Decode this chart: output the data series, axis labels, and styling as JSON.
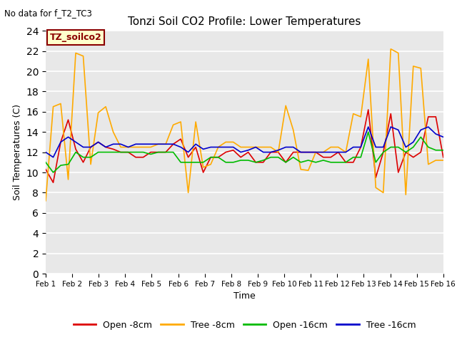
{
  "title": "Tonzi Soil CO2 Profile: Lower Temperatures",
  "subtitle": "No data for f_T2_TC3",
  "xlabel": "Time",
  "ylabel": "Soil Temperatures (C)",
  "ylim": [
    0,
    24
  ],
  "yticks": [
    0,
    2,
    4,
    6,
    8,
    10,
    12,
    14,
    16,
    18,
    20,
    22,
    24
  ],
  "x_labels": [
    "Feb 1",
    "Feb 2",
    "Feb 3",
    "Feb 4",
    "Feb 5",
    "Feb 6",
    "Feb 7",
    "Feb 8",
    "Feb 9",
    "Feb 10",
    "Feb 11",
    "Feb 12",
    "Feb 13",
    "Feb 14",
    "Feb 15",
    "Feb 16"
  ],
  "annotation_text": "TZ_soilco2",
  "legend": [
    "Open -8cm",
    "Tree -8cm",
    "Open -16cm",
    "Tree -16cm"
  ],
  "colors": {
    "open_8cm": "#dd0000",
    "tree_8cm": "#ffaa00",
    "open_16cm": "#00bb00",
    "tree_16cm": "#0000cc"
  },
  "bg_color": "#e8e8e8",
  "open_8cm": [
    10.3,
    9.0,
    13.0,
    15.2,
    12.3,
    11.0,
    12.5,
    13.0,
    12.5,
    12.3,
    12.0,
    12.0,
    11.5,
    11.5,
    12.0,
    12.0,
    12.0,
    12.8,
    13.3,
    11.5,
    12.5,
    10.0,
    11.5,
    11.5,
    12.0,
    12.2,
    11.5,
    12.0,
    11.0,
    11.0,
    12.0,
    12.0,
    11.0,
    12.0,
    12.0,
    12.0,
    12.0,
    11.5,
    11.5,
    12.0,
    11.0,
    11.0,
    12.5,
    16.2,
    9.5,
    12.0,
    15.8,
    10.0,
    12.0,
    11.5,
    12.0,
    15.5,
    15.5,
    11.5
  ],
  "tree_8cm": [
    7.2,
    16.5,
    16.8,
    9.3,
    21.8,
    21.5,
    10.8,
    15.9,
    16.5,
    14.0,
    12.5,
    12.5,
    12.5,
    12.5,
    12.5,
    12.8,
    12.8,
    14.7,
    15.0,
    8.0,
    15.0,
    10.5,
    10.8,
    12.5,
    13.0,
    13.0,
    12.5,
    12.5,
    12.5,
    12.5,
    12.5,
    12.0,
    16.6,
    14.2,
    10.3,
    10.2,
    12.0,
    12.0,
    12.5,
    12.5,
    12.0,
    15.8,
    15.5,
    21.2,
    8.5,
    8.0,
    22.2,
    21.8,
    7.8,
    20.5,
    20.3,
    10.8,
    11.2,
    11.2
  ],
  "open_16cm": [
    11.0,
    10.0,
    10.7,
    10.8,
    12.0,
    11.5,
    11.5,
    12.0,
    12.0,
    12.0,
    12.0,
    12.0,
    12.0,
    12.0,
    11.8,
    12.0,
    12.0,
    12.0,
    11.0,
    11.0,
    11.0,
    11.0,
    11.5,
    11.5,
    11.0,
    11.0,
    11.2,
    11.2,
    11.0,
    11.2,
    11.5,
    11.5,
    11.0,
    11.5,
    11.0,
    11.2,
    11.0,
    11.2,
    11.0,
    11.0,
    11.0,
    11.5,
    11.5,
    14.0,
    11.0,
    12.0,
    12.5,
    12.5,
    12.0,
    12.5,
    13.5,
    12.5,
    12.2,
    12.2
  ],
  "tree_16cm": [
    12.0,
    11.5,
    13.0,
    13.5,
    13.0,
    12.5,
    12.5,
    13.0,
    12.5,
    12.8,
    12.8,
    12.5,
    12.8,
    12.8,
    12.8,
    12.8,
    12.8,
    12.8,
    12.5,
    12.0,
    12.8,
    12.3,
    12.5,
    12.5,
    12.5,
    12.5,
    12.0,
    12.2,
    12.5,
    12.0,
    12.0,
    12.2,
    12.5,
    12.5,
    12.0,
    12.0,
    12.0,
    12.0,
    12.0,
    12.0,
    12.0,
    12.5,
    12.5,
    14.5,
    12.5,
    12.5,
    14.5,
    14.2,
    12.5,
    13.0,
    14.2,
    14.5,
    13.8,
    13.5
  ]
}
